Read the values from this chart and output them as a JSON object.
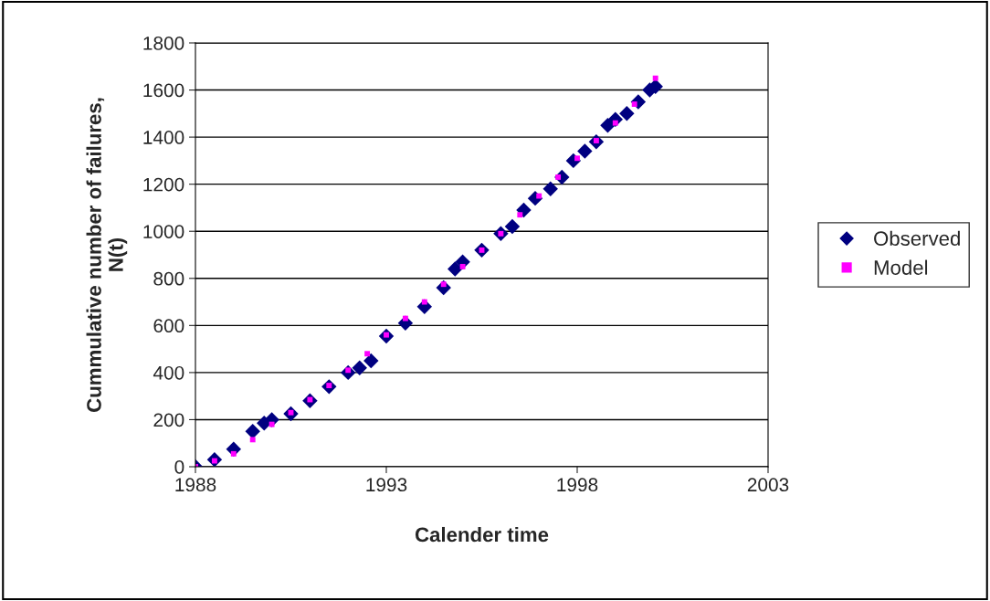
{
  "chart_data": {
    "type": "scatter",
    "xlabel": "Calender time",
    "ylabel": "Cummulative number of failures,\nN(t)",
    "xlim": [
      1988,
      2003
    ],
    "xticks": [
      1988,
      1993,
      1998,
      2003
    ],
    "ylim": [
      0,
      1800
    ],
    "yticks": [
      0,
      200,
      400,
      600,
      800,
      1000,
      1200,
      1400,
      1600,
      1800
    ],
    "grid": "y",
    "legend": "right",
    "series": [
      {
        "name": "Observed",
        "color": "#000080",
        "marker": "diamond",
        "x": [
          1988.0,
          1988.5,
          1989.0,
          1989.5,
          1989.8,
          1990.0,
          1990.5,
          1991.0,
          1991.5,
          1992.0,
          1992.3,
          1992.6,
          1993.0,
          1993.5,
          1994.0,
          1994.5,
          1994.8,
          1995.0,
          1995.5,
          1996.0,
          1996.3,
          1996.6,
          1996.9,
          1997.3,
          1997.6,
          1997.9,
          1998.2,
          1998.5,
          1998.8,
          1999.0,
          1999.3,
          1999.6,
          1999.9,
          2000.05
        ],
        "values": [
          0,
          30,
          75,
          150,
          185,
          200,
          225,
          280,
          340,
          400,
          420,
          450,
          555,
          610,
          680,
          760,
          840,
          870,
          920,
          990,
          1020,
          1090,
          1140,
          1180,
          1230,
          1300,
          1340,
          1380,
          1450,
          1475,
          1500,
          1550,
          1600,
          1615
        ]
      },
      {
        "name": "Model",
        "color": "#ff00ff",
        "marker": "square",
        "x": [
          1988.0,
          1988.5,
          1989.0,
          1989.5,
          1990.0,
          1990.5,
          1991.0,
          1991.5,
          1992.0,
          1992.5,
          1993.0,
          1993.5,
          1994.0,
          1994.5,
          1995.0,
          1995.5,
          1996.0,
          1996.5,
          1997.0,
          1997.5,
          1998.0,
          1998.5,
          1999.0,
          1999.5,
          2000.05
        ],
        "values": [
          0,
          25,
          55,
          115,
          180,
          230,
          285,
          345,
          410,
          480,
          560,
          630,
          700,
          775,
          850,
          920,
          990,
          1070,
          1150,
          1230,
          1310,
          1385,
          1460,
          1540,
          1650
        ]
      }
    ]
  }
}
